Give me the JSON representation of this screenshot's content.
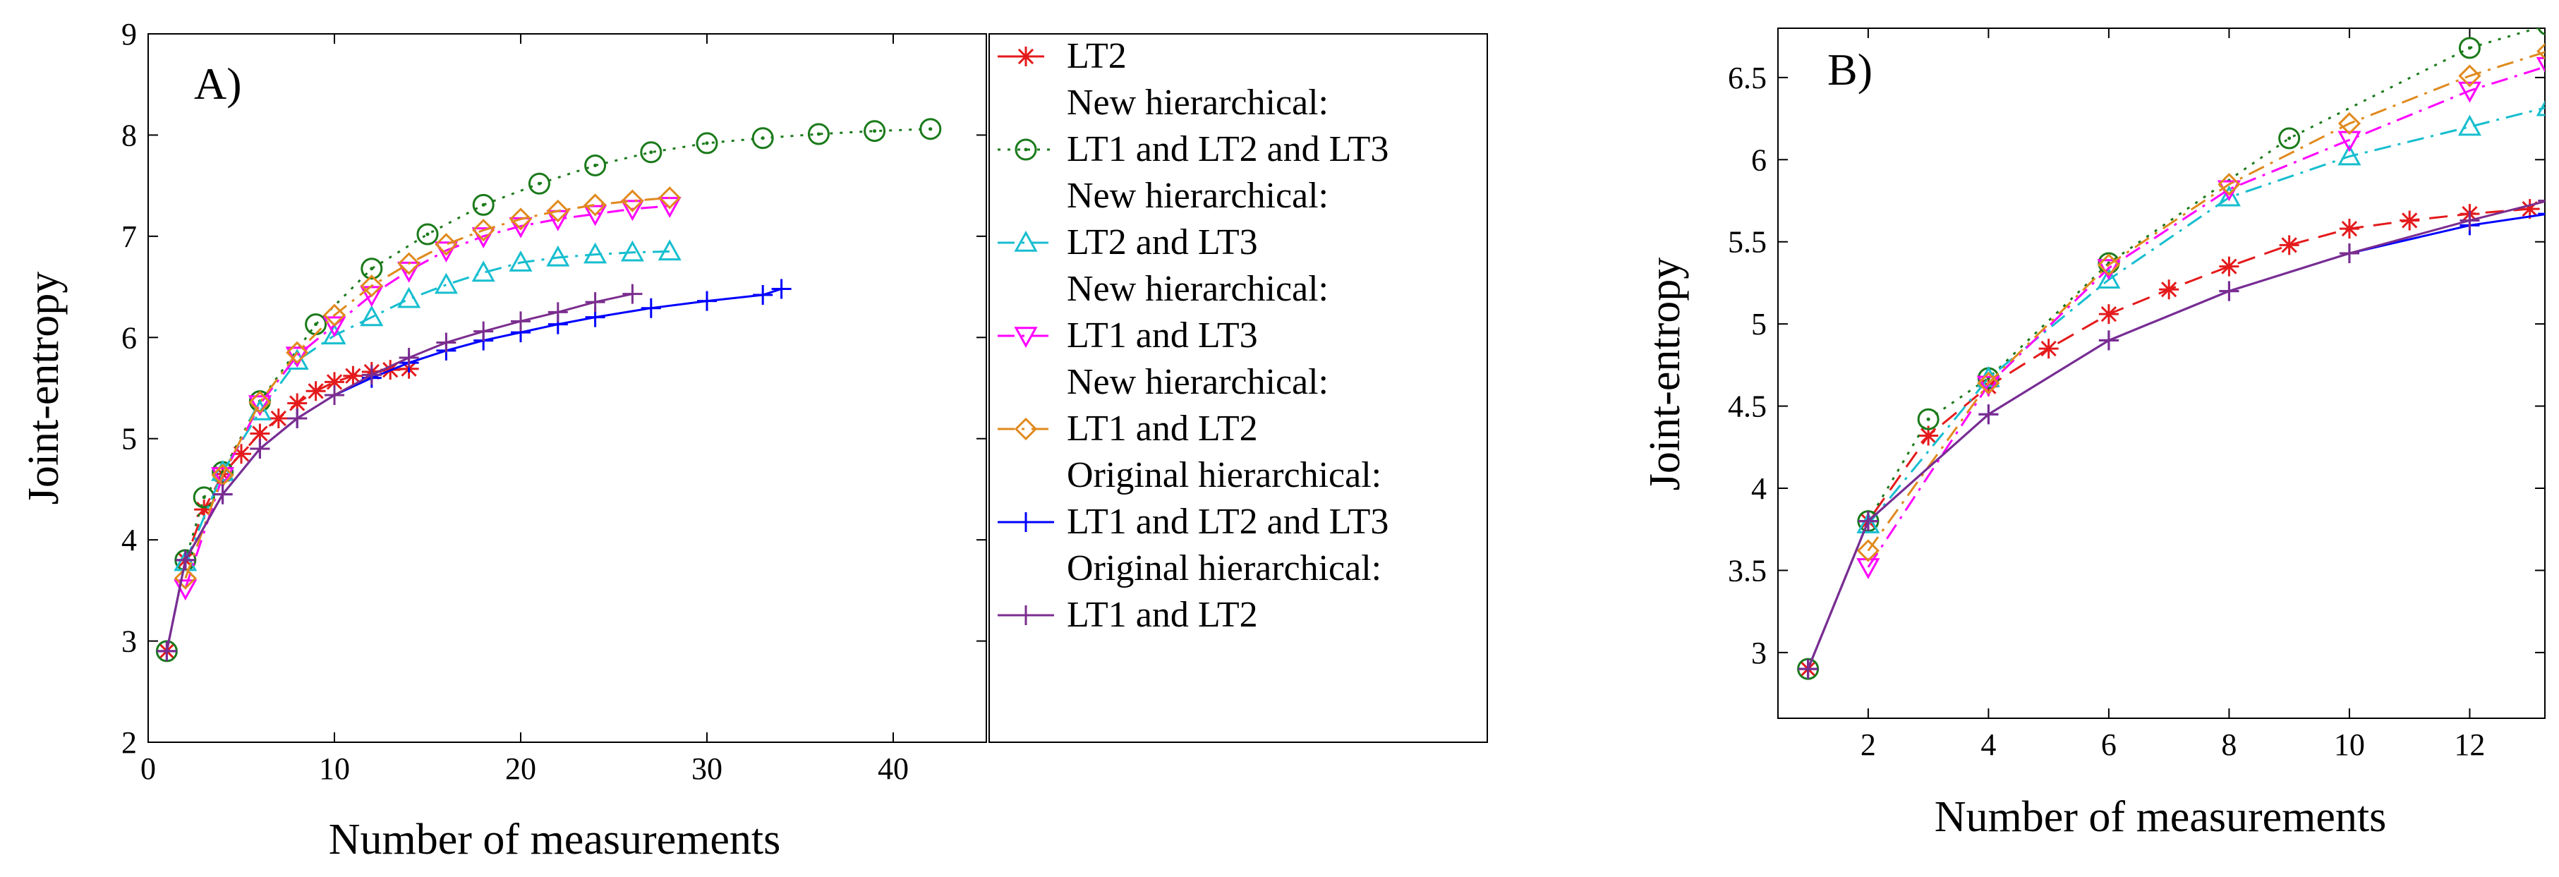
{
  "chart_data": [
    {
      "type": "line",
      "panel_label": "A)",
      "xlabel": "Number of measurements",
      "ylabel": "Joint-entropy",
      "xlim": [
        0,
        45
      ],
      "ylim": [
        2,
        9
      ],
      "xticks": [
        0,
        10,
        20,
        30,
        40
      ],
      "yticks": [
        2,
        3,
        4,
        5,
        6,
        7,
        8,
        9
      ],
      "grid": false,
      "legend_position": "outside-right",
      "series": [
        {
          "name": "LT2",
          "color": "#e41a1c",
          "dash": "dashed",
          "marker": "asterisk",
          "x": [
            1,
            2,
            3,
            4,
            5,
            6,
            7,
            8,
            9,
            10,
            11,
            12,
            13,
            14
          ],
          "y": [
            2.9,
            3.8,
            4.3,
            4.65,
            4.85,
            5.05,
            5.2,
            5.35,
            5.47,
            5.56,
            5.62,
            5.66,
            5.68,
            5.69
          ]
        },
        {
          "name": "New hierarchical: LT1 and LT2 and LT3",
          "color": "#1a7a1a",
          "dash": "dotted",
          "marker": "circle",
          "x": [
            1,
            2,
            3,
            4,
            6,
            9,
            12,
            15,
            18,
            21,
            24,
            27,
            30,
            33,
            36,
            39,
            42
          ],
          "y": [
            2.9,
            3.8,
            4.42,
            4.67,
            5.37,
            6.13,
            6.68,
            7.02,
            7.31,
            7.52,
            7.7,
            7.83,
            7.92,
            7.97,
            8.01,
            8.04,
            8.06
          ]
        },
        {
          "name": "New hierarchical: LT2 and LT3",
          "color": "#17becf",
          "dash": "dashdot",
          "marker": "triangle-up",
          "x": [
            2,
            4,
            6,
            8,
            10,
            12,
            14,
            16,
            18,
            20,
            22,
            24,
            26,
            28
          ],
          "y": [
            3.78,
            4.67,
            5.27,
            5.77,
            6.02,
            6.2,
            6.38,
            6.52,
            6.64,
            6.74,
            6.79,
            6.82,
            6.84,
            6.85
          ]
        },
        {
          "name": "New hierarchical: LT1 and LT3",
          "color": "#ff00ff",
          "dash": "dashdot",
          "marker": "triangle-down",
          "x": [
            2,
            4,
            6,
            8,
            10,
            12,
            14,
            16,
            18,
            20,
            22,
            24,
            26,
            28
          ],
          "y": [
            3.52,
            4.63,
            5.34,
            5.82,
            6.12,
            6.42,
            6.66,
            6.86,
            7.0,
            7.1,
            7.17,
            7.22,
            7.27,
            7.3
          ]
        },
        {
          "name": "New hierarchical: LT1 and LT2",
          "color": "#e08a1e",
          "dash": "dashdot",
          "marker": "diamond",
          "x": [
            2,
            4,
            6,
            8,
            10,
            12,
            14,
            16,
            18,
            20,
            22,
            24,
            26,
            28
          ],
          "y": [
            3.62,
            4.64,
            5.36,
            5.85,
            6.22,
            6.51,
            6.73,
            6.92,
            7.06,
            7.17,
            7.25,
            7.31,
            7.35,
            7.38
          ]
        },
        {
          "name": "Original hierarchical: LT1 and LT2 and LT3",
          "color": "#0000ff",
          "dash": "solid",
          "marker": "plus",
          "x": [
            1,
            2,
            4,
            6,
            8,
            10,
            12,
            14,
            16,
            18,
            20,
            22,
            24,
            27,
            30,
            33,
            34
          ],
          "y": [
            2.9,
            3.8,
            4.45,
            4.9,
            5.2,
            5.43,
            5.6,
            5.75,
            5.87,
            5.97,
            6.05,
            6.13,
            6.2,
            6.29,
            6.36,
            6.42,
            6.48
          ]
        },
        {
          "name": "Original hierarchical: LT1 and LT2",
          "color": "#7b2d8e",
          "dash": "solid",
          "marker": "plus",
          "x": [
            1,
            2,
            4,
            6,
            8,
            10,
            12,
            14,
            16,
            18,
            20,
            22,
            24,
            26
          ],
          "y": [
            2.9,
            3.8,
            4.45,
            4.9,
            5.2,
            5.43,
            5.63,
            5.8,
            5.95,
            6.06,
            6.16,
            6.25,
            6.35,
            6.43
          ]
        }
      ]
    },
    {
      "type": "line",
      "panel_label": "B)",
      "xlabel": "Number of measurements",
      "ylabel": "Joint-entropy",
      "xlim": [
        0.5,
        13.25
      ],
      "ylim": [
        2.6,
        6.8
      ],
      "xticks": [
        2,
        4,
        6,
        8,
        10,
        12
      ],
      "yticks": [
        3,
        3.5,
        4,
        4.5,
        5,
        5.5,
        6,
        6.5
      ],
      "grid": false,
      "series": [
        {
          "name": "LT2",
          "color": "#e41a1c",
          "dash": "dashed",
          "marker": "asterisk",
          "x": [
            1,
            2,
            3,
            4,
            5,
            6,
            7,
            8,
            9,
            10,
            11,
            12,
            13
          ],
          "y": [
            2.9,
            3.8,
            4.32,
            4.62,
            4.85,
            5.06,
            5.21,
            5.35,
            5.48,
            5.58,
            5.63,
            5.67,
            5.7
          ]
        },
        {
          "name": "New hierarchical: LT1 and LT2 and LT3",
          "color": "#1a7a1a",
          "dash": "dotted",
          "marker": "circle",
          "x": [
            1,
            2,
            3,
            4,
            6,
            9,
            12,
            13.3
          ],
          "y": [
            2.9,
            3.8,
            4.42,
            4.67,
            5.37,
            6.13,
            6.68,
            6.82
          ]
        },
        {
          "name": "New hierarchical: LT2 and LT3",
          "color": "#17becf",
          "dash": "dashdot",
          "marker": "triangle-up",
          "x": [
            2,
            4,
            6,
            8,
            10,
            12,
            13.3
          ],
          "y": [
            3.78,
            4.67,
            5.27,
            5.77,
            6.02,
            6.2,
            6.32
          ]
        },
        {
          "name": "New hierarchical: LT1 and LT3",
          "color": "#ff00ff",
          "dash": "dashdot",
          "marker": "triangle-down",
          "x": [
            2,
            4,
            6,
            8,
            10,
            12,
            13.3
          ],
          "y": [
            3.52,
            4.63,
            5.34,
            5.82,
            6.12,
            6.42,
            6.57
          ]
        },
        {
          "name": "New hierarchical: LT1 and LT2",
          "color": "#e08a1e",
          "dash": "dashdot",
          "marker": "diamond",
          "x": [
            2,
            4,
            6,
            8,
            10,
            12,
            13.3
          ],
          "y": [
            3.62,
            4.64,
            5.36,
            5.85,
            6.22,
            6.51,
            6.66
          ]
        },
        {
          "name": "Original hierarchical: LT1 and LT2 and LT3",
          "color": "#0000ff",
          "dash": "solid",
          "marker": "plus",
          "x": [
            1,
            2,
            4,
            6,
            8,
            10,
            12,
            13.3
          ],
          "y": [
            2.9,
            3.8,
            4.45,
            4.9,
            5.2,
            5.43,
            5.6,
            5.67
          ]
        },
        {
          "name": "Original hierarchical: LT1 and LT2",
          "color": "#7b2d8e",
          "dash": "solid",
          "marker": "plus",
          "x": [
            1,
            2,
            4,
            6,
            8,
            10,
            12,
            13.3
          ],
          "y": [
            2.9,
            3.8,
            4.45,
            4.9,
            5.2,
            5.43,
            5.63,
            5.75
          ]
        }
      ]
    }
  ],
  "legend": {
    "entries": [
      {
        "lines": [
          "LT2"
        ],
        "color": "#e41a1c",
        "dash": "dashed",
        "marker": "asterisk"
      },
      {
        "lines": [
          "New hierarchical:",
          "LT1 and LT2 and LT3"
        ],
        "color": "#1a7a1a",
        "dash": "dotted",
        "marker": "circle"
      },
      {
        "lines": [
          "New hierarchical:",
          "LT2 and LT3"
        ],
        "color": "#17becf",
        "dash": "dashdot",
        "marker": "triangle-up"
      },
      {
        "lines": [
          "New hierarchical:",
          "LT1 and LT3"
        ],
        "color": "#ff00ff",
        "dash": "dashdot",
        "marker": "triangle-down"
      },
      {
        "lines": [
          "New hierarchical:",
          "LT1 and LT2"
        ],
        "color": "#e08a1e",
        "dash": "dashdot",
        "marker": "diamond"
      },
      {
        "lines": [
          "Original hierarchical:",
          "LT1 and LT2 and LT3"
        ],
        "color": "#0000ff",
        "dash": "solid",
        "marker": "plus"
      },
      {
        "lines": [
          "Original hierarchical:",
          "LT1 and LT2"
        ],
        "color": "#7b2d8e",
        "dash": "solid",
        "marker": "plus"
      }
    ]
  }
}
